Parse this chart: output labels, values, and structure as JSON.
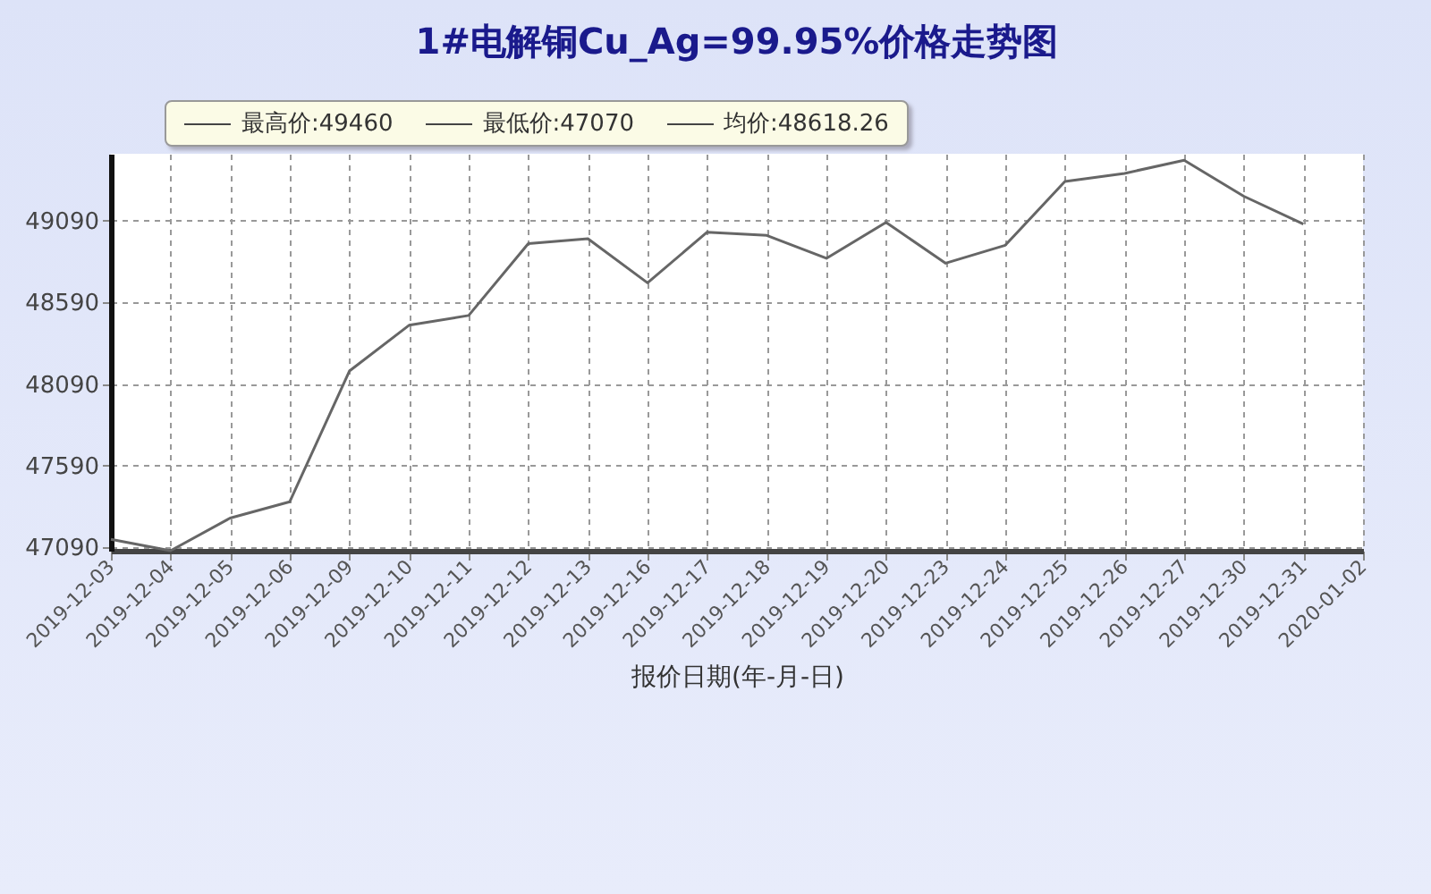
{
  "chart_data": {
    "type": "line",
    "title": "1#电解铜Cu_Ag=99.95%价格走势图",
    "xlabel": "报价日期(年-月-日)",
    "annotations": [
      "最高价:49460",
      "最低价:47070",
      "均价:48618.26"
    ],
    "categories": [
      "2019-12-03",
      "2019-12-04",
      "2019-12-05",
      "2019-12-06",
      "2019-12-09",
      "2019-12-10",
      "2019-12-11",
      "2019-12-12",
      "2019-12-13",
      "2019-12-16",
      "2019-12-17",
      "2019-12-18",
      "2019-12-19",
      "2019-12-20",
      "2019-12-23",
      "2019-12-24",
      "2019-12-25",
      "2019-12-26",
      "2019-12-27",
      "2019-12-30",
      "2019-12-31",
      "2020-01-02"
    ],
    "series": [
      {
        "color": "#666666",
        "values": [
          47140,
          47070,
          47270,
          47370,
          48170,
          48450,
          48510,
          48950,
          48980,
          48710,
          49020,
          49000,
          48860,
          49080,
          48830,
          48940,
          49330,
          49380,
          49460,
          49240,
          49070,
          null
        ]
      }
    ],
    "ylim": [
      47070,
      49500
    ],
    "yticks": [
      47090,
      47590,
      48090,
      48590,
      49090
    ],
    "grid": true,
    "line_style": "solid"
  }
}
